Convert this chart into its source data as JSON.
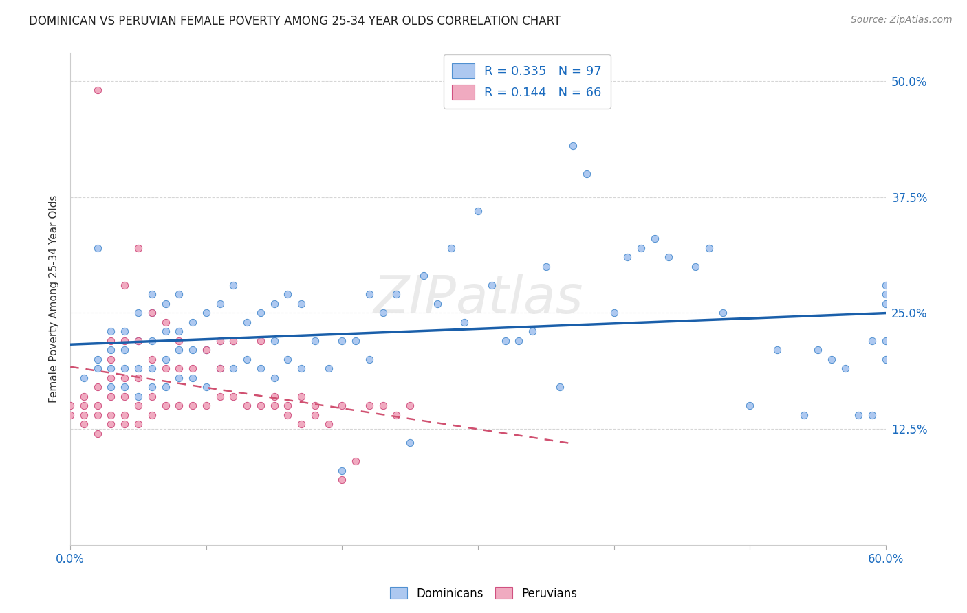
{
  "title": "DOMINICAN VS PERUVIAN FEMALE POVERTY AMONG 25-34 YEAR OLDS CORRELATION CHART",
  "source": "Source: ZipAtlas.com",
  "ylabel": "Female Poverty Among 25-34 Year Olds",
  "xlim": [
    0.0,
    0.6
  ],
  "ylim": [
    0.0,
    0.53
  ],
  "xtick_positions": [
    0.0,
    0.1,
    0.2,
    0.3,
    0.4,
    0.5,
    0.6
  ],
  "xtick_labels": [
    "0.0%",
    "",
    "",
    "",
    "",
    "",
    "60.0%"
  ],
  "ytick_labels": [
    "12.5%",
    "25.0%",
    "37.5%",
    "50.0%"
  ],
  "yticks": [
    0.125,
    0.25,
    0.375,
    0.5
  ],
  "blue_face_color": "#adc8f0",
  "blue_edge_color": "#5090d0",
  "pink_face_color": "#f0aac0",
  "pink_edge_color": "#d05080",
  "blue_line_color": "#1a5faa",
  "pink_line_color": "#d05070",
  "background_color": "#ffffff",
  "watermark": "ZIPatlas",
  "R_blue": 0.335,
  "N_blue": 97,
  "R_pink": 0.144,
  "N_pink": 66,
  "blue_scatter_x": [
    0.01,
    0.02,
    0.02,
    0.02,
    0.03,
    0.03,
    0.03,
    0.03,
    0.04,
    0.04,
    0.04,
    0.04,
    0.05,
    0.05,
    0.05,
    0.05,
    0.06,
    0.06,
    0.06,
    0.06,
    0.06,
    0.07,
    0.07,
    0.07,
    0.07,
    0.08,
    0.08,
    0.08,
    0.08,
    0.09,
    0.09,
    0.09,
    0.1,
    0.1,
    0.1,
    0.11,
    0.11,
    0.11,
    0.12,
    0.12,
    0.12,
    0.13,
    0.13,
    0.14,
    0.14,
    0.15,
    0.15,
    0.15,
    0.16,
    0.16,
    0.17,
    0.17,
    0.18,
    0.19,
    0.2,
    0.2,
    0.21,
    0.22,
    0.22,
    0.23,
    0.24,
    0.25,
    0.26,
    0.27,
    0.28,
    0.29,
    0.3,
    0.31,
    0.32,
    0.33,
    0.34,
    0.35,
    0.36,
    0.37,
    0.38,
    0.4,
    0.41,
    0.42,
    0.43,
    0.44,
    0.46,
    0.47,
    0.48,
    0.5,
    0.52,
    0.54,
    0.55,
    0.56,
    0.57,
    0.58,
    0.59,
    0.59,
    0.6,
    0.6,
    0.6,
    0.6,
    0.6
  ],
  "blue_scatter_y": [
    0.18,
    0.19,
    0.2,
    0.32,
    0.17,
    0.19,
    0.21,
    0.23,
    0.17,
    0.19,
    0.21,
    0.23,
    0.16,
    0.19,
    0.22,
    0.25,
    0.17,
    0.19,
    0.22,
    0.25,
    0.27,
    0.17,
    0.2,
    0.23,
    0.26,
    0.18,
    0.21,
    0.23,
    0.27,
    0.18,
    0.21,
    0.24,
    0.17,
    0.21,
    0.25,
    0.19,
    0.22,
    0.26,
    0.19,
    0.22,
    0.28,
    0.2,
    0.24,
    0.19,
    0.25,
    0.18,
    0.22,
    0.26,
    0.2,
    0.27,
    0.19,
    0.26,
    0.22,
    0.19,
    0.08,
    0.22,
    0.22,
    0.2,
    0.27,
    0.25,
    0.27,
    0.11,
    0.29,
    0.26,
    0.32,
    0.24,
    0.36,
    0.28,
    0.22,
    0.22,
    0.23,
    0.3,
    0.17,
    0.43,
    0.4,
    0.25,
    0.31,
    0.32,
    0.33,
    0.31,
    0.3,
    0.32,
    0.25,
    0.15,
    0.21,
    0.14,
    0.21,
    0.2,
    0.19,
    0.14,
    0.22,
    0.14,
    0.22,
    0.2,
    0.27,
    0.28,
    0.26
  ],
  "pink_scatter_x": [
    0.0,
    0.0,
    0.01,
    0.01,
    0.01,
    0.01,
    0.02,
    0.02,
    0.02,
    0.02,
    0.02,
    0.03,
    0.03,
    0.03,
    0.03,
    0.03,
    0.03,
    0.04,
    0.04,
    0.04,
    0.04,
    0.04,
    0.04,
    0.05,
    0.05,
    0.05,
    0.05,
    0.05,
    0.06,
    0.06,
    0.06,
    0.06,
    0.07,
    0.07,
    0.07,
    0.08,
    0.08,
    0.08,
    0.09,
    0.09,
    0.1,
    0.1,
    0.11,
    0.11,
    0.11,
    0.12,
    0.12,
    0.13,
    0.14,
    0.14,
    0.15,
    0.15,
    0.16,
    0.16,
    0.17,
    0.17,
    0.18,
    0.18,
    0.19,
    0.2,
    0.2,
    0.21,
    0.22,
    0.23,
    0.24,
    0.25
  ],
  "pink_scatter_y": [
    0.14,
    0.15,
    0.13,
    0.14,
    0.15,
    0.16,
    0.12,
    0.14,
    0.15,
    0.17,
    0.49,
    0.13,
    0.14,
    0.16,
    0.18,
    0.2,
    0.22,
    0.13,
    0.14,
    0.16,
    0.18,
    0.22,
    0.28,
    0.13,
    0.15,
    0.18,
    0.22,
    0.32,
    0.14,
    0.16,
    0.2,
    0.25,
    0.15,
    0.19,
    0.24,
    0.15,
    0.19,
    0.22,
    0.15,
    0.19,
    0.15,
    0.21,
    0.16,
    0.19,
    0.22,
    0.16,
    0.22,
    0.15,
    0.15,
    0.22,
    0.15,
    0.16,
    0.14,
    0.15,
    0.13,
    0.16,
    0.14,
    0.15,
    0.13,
    0.07,
    0.15,
    0.09,
    0.15,
    0.15,
    0.14,
    0.15
  ]
}
